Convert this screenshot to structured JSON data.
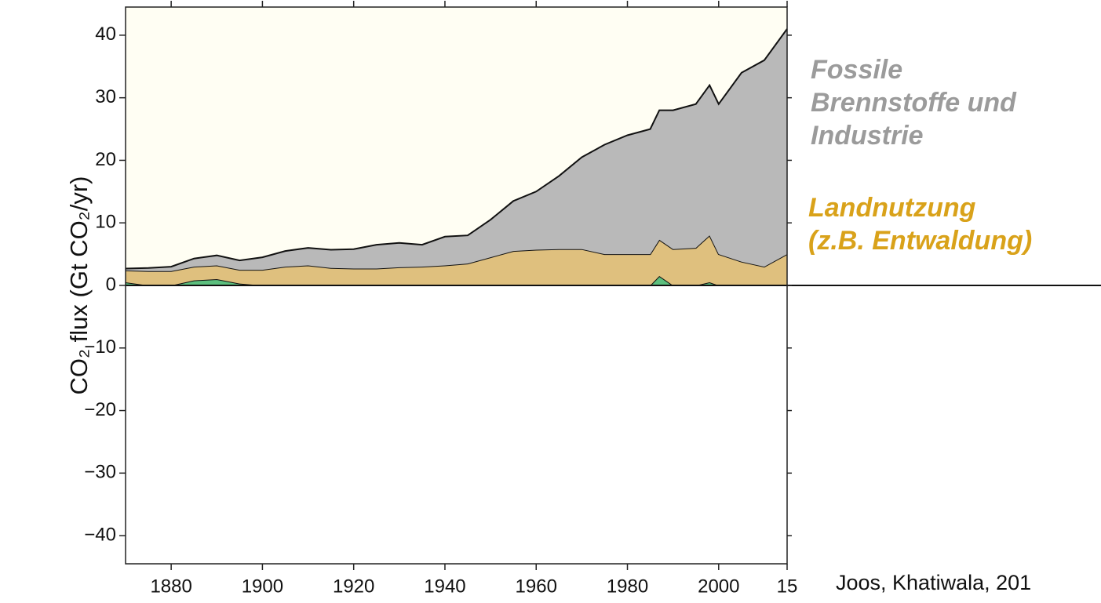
{
  "chart_data": {
    "type": "stacked_area",
    "y_label": "CO₂ flux (Gt CO₂/yr)",
    "source": "Joos, Khatiwala, 201",
    "x": [
      1870,
      1875,
      1880,
      1885,
      1890,
      1895,
      1900,
      1905,
      1910,
      1915,
      1920,
      1925,
      1930,
      1935,
      1940,
      1945,
      1950,
      1955,
      1960,
      1965,
      1970,
      1975,
      1980,
      1985,
      1987,
      1990,
      1995,
      1998,
      2000,
      2005,
      2010,
      2015
    ],
    "series": [
      {
        "name": null,
        "color": "#5cbf7e",
        "values": [
          0.5,
          0,
          0,
          0.8,
          1.0,
          0.3,
          0,
          0,
          0,
          0,
          0,
          0,
          0,
          0,
          0,
          0,
          0,
          0,
          0,
          0,
          0,
          0,
          0,
          0,
          1.5,
          0,
          0,
          0.5,
          0,
          0,
          0,
          0
        ]
      },
      {
        "name": "Landnutzung\n(z.B. Entwaldung)",
        "color": "#dfc07e",
        "label_color": "#d9a21a",
        "values": [
          1.9,
          2.3,
          2.3,
          2.2,
          2.2,
          2.2,
          2.5,
          3.0,
          3.2,
          2.8,
          2.7,
          2.7,
          2.9,
          3.0,
          3.2,
          3.5,
          4.5,
          5.5,
          5.7,
          5.8,
          5.8,
          5.0,
          5.0,
          5.0,
          5.8,
          5.8,
          6.0,
          7.5,
          5.0,
          3.8,
          3.0,
          5.0
        ]
      },
      {
        "name": "Fossile\nBrennstoffe und\nIndustrie",
        "color": "#b9b9b9",
        "label_color": "#9b9b9b",
        "values": [
          0.3,
          0.5,
          0.7,
          1.3,
          1.6,
          1.5,
          2.0,
          2.5,
          2.8,
          2.9,
          3.1,
          3.8,
          3.9,
          3.5,
          4.6,
          4.5,
          6.0,
          8.0,
          9.3,
          11.7,
          14.7,
          17.5,
          19,
          20,
          20.7,
          22.2,
          23,
          24,
          24,
          30.2,
          33,
          36
        ]
      }
    ],
    "xlim": [
      1870,
      2015
    ],
    "xticks": [
      1880,
      1900,
      1920,
      1940,
      1960,
      1980,
      2000,
      {
        "value": 2015,
        "label": "15"
      }
    ],
    "ylim": [
      -44.5,
      44.5
    ],
    "yticks": [
      {
        "value": -40,
        "label": "−40"
      },
      {
        "value": -30,
        "label": "−30"
      },
      {
        "value": -20,
        "label": "−20"
      },
      {
        "value": -10,
        "label": "−10"
      },
      0,
      10,
      20,
      30,
      40
    ],
    "positive_background": "#fffef3"
  }
}
